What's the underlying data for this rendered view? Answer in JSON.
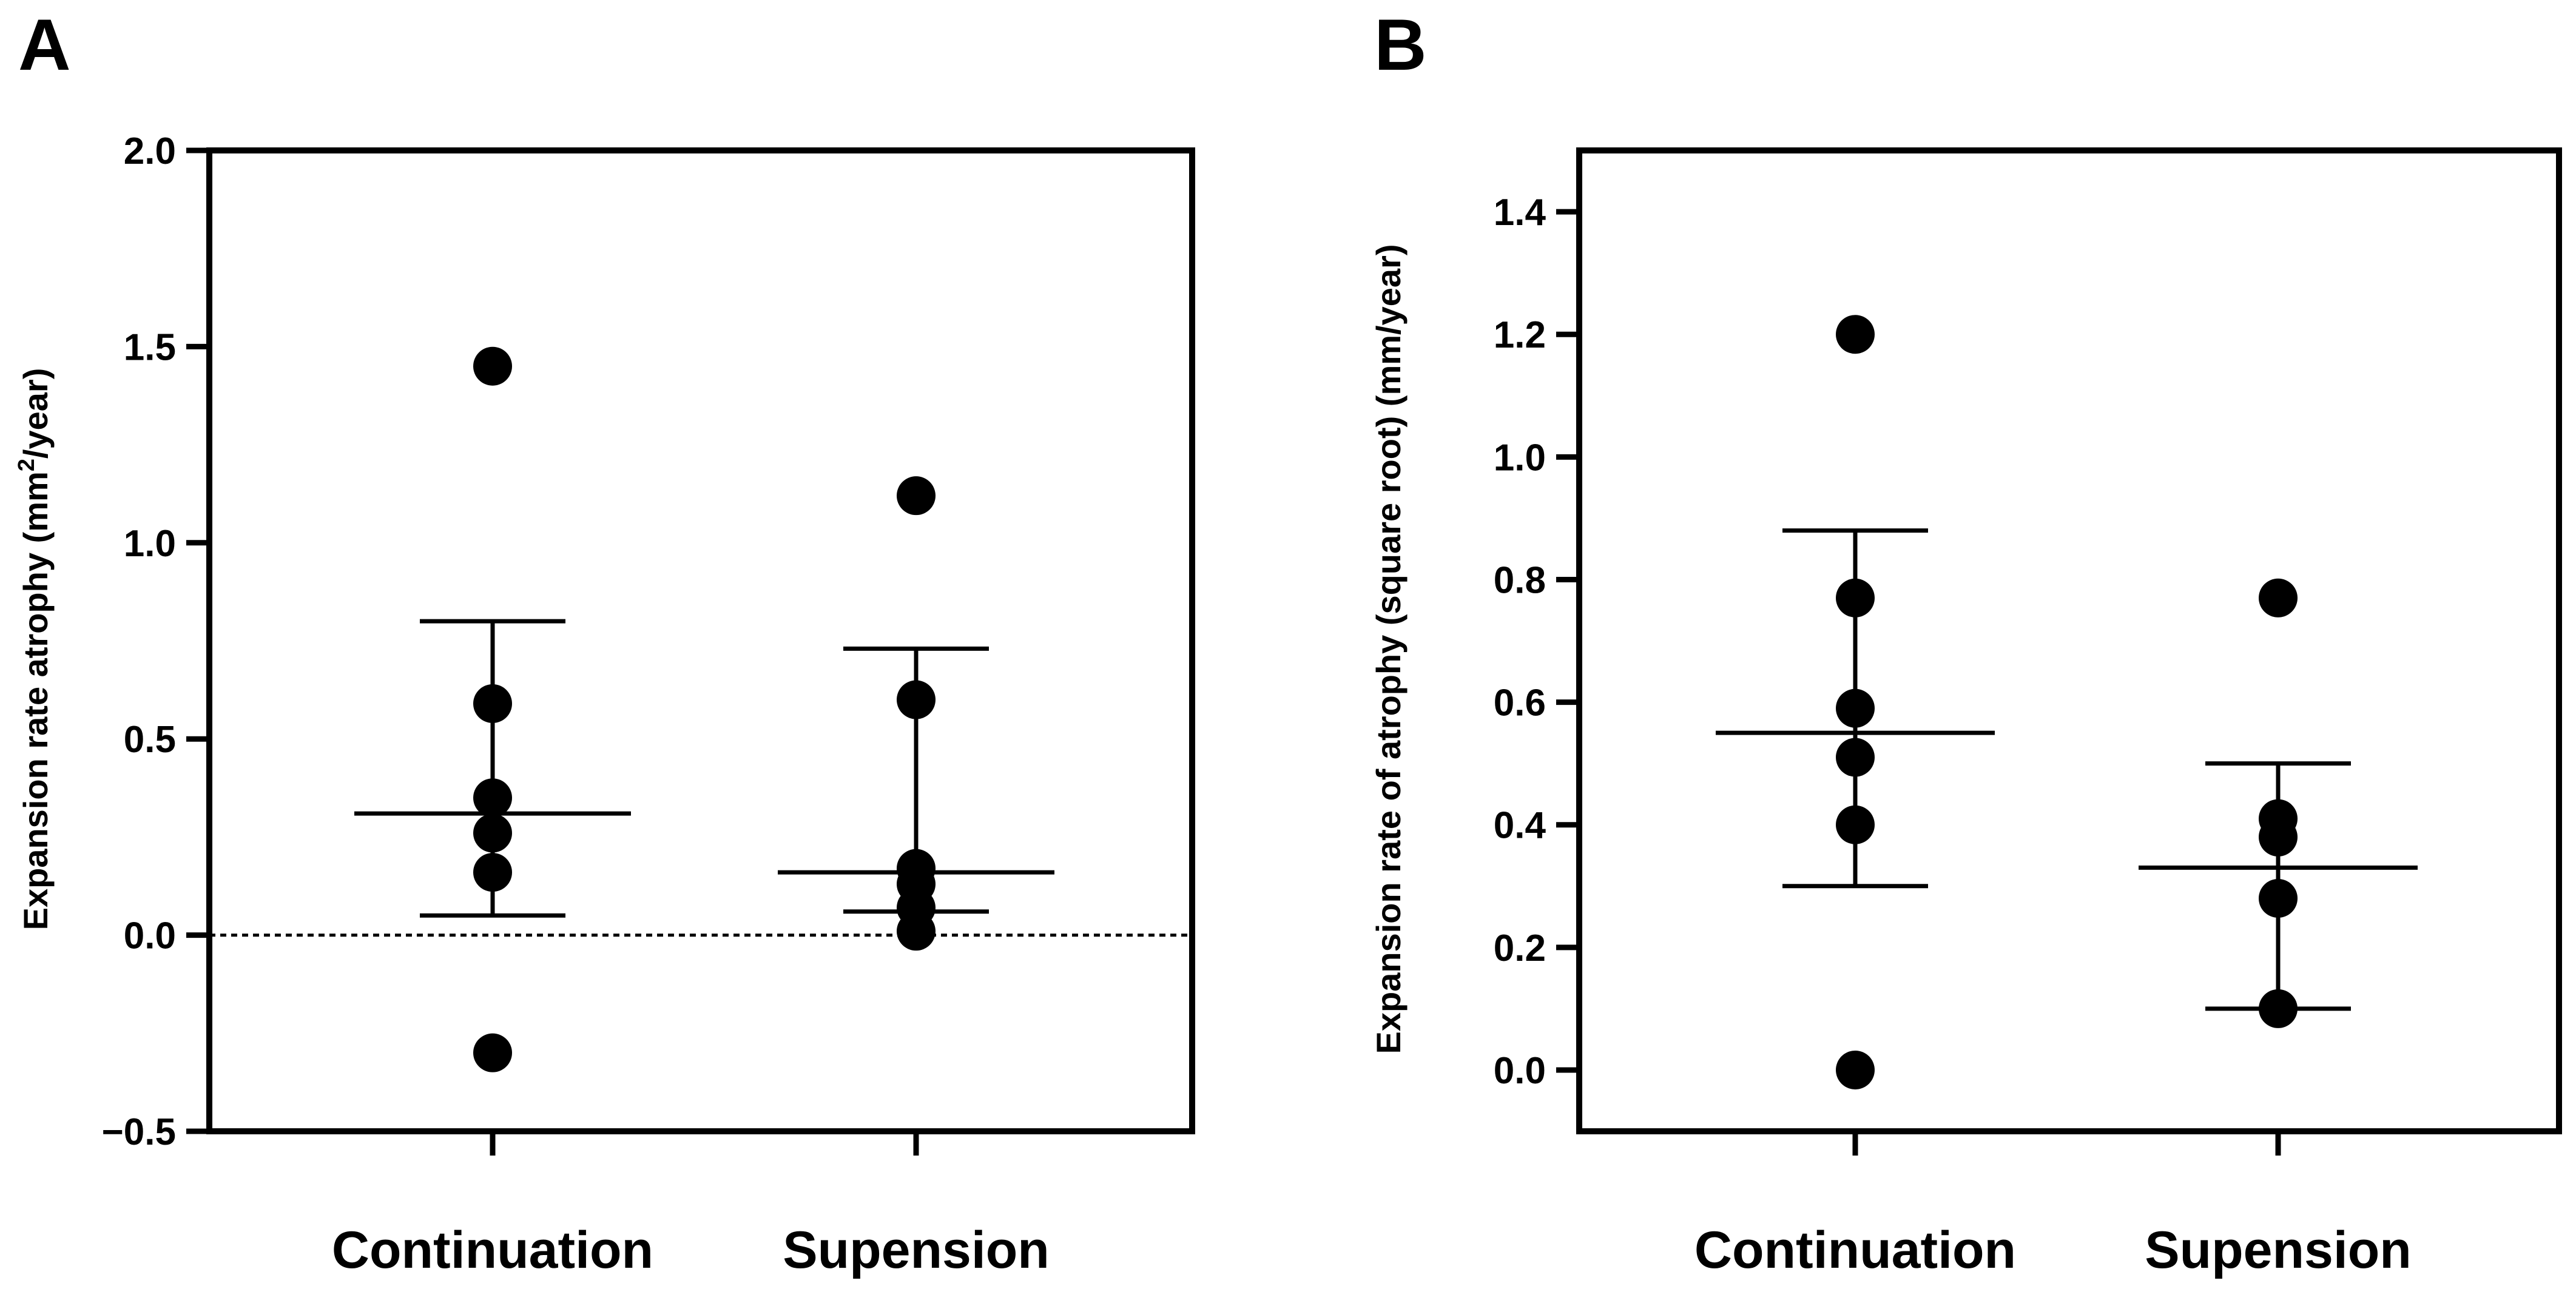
{
  "chart_data": [
    {
      "type": "scatter",
      "panel_label": "A",
      "title": "",
      "xlabel": "",
      "ylabel_parts": [
        "Expansion rate atrophy (mm",
        "2",
        "/year)"
      ],
      "categories": [
        "Continuation",
        "Supension"
      ],
      "ylim": [
        -0.5,
        2.0
      ],
      "yticks": [
        -0.5,
        0.0,
        0.5,
        1.0,
        1.5,
        2.0
      ],
      "ytick_labels": [
        "−0.5",
        "0.0",
        "0.5",
        "1.0",
        "1.5",
        "2.0"
      ],
      "reference_line": {
        "y": 0.0,
        "style": "dotted"
      },
      "series": [
        {
          "name": "Continuation",
          "points": [
            1.45,
            0.59,
            0.35,
            0.26,
            0.16,
            -0.3
          ],
          "mean": 0.31,
          "error_low": 0.05,
          "error_high": 0.8
        },
        {
          "name": "Supension",
          "points": [
            1.12,
            0.6,
            0.17,
            0.13,
            0.07,
            0.01
          ],
          "mean": 0.16,
          "error_low": 0.06,
          "error_high": 0.73
        }
      ]
    },
    {
      "type": "scatter",
      "panel_label": "B",
      "title": "",
      "xlabel": "",
      "ylabel_parts": [
        "Expansion  rate of atrophy (square root) (mm/year)"
      ],
      "categories": [
        "Continuation",
        "Supension"
      ],
      "ylim": [
        -0.1,
        1.5
      ],
      "yticks": [
        0.0,
        0.2,
        0.4,
        0.6,
        0.8,
        1.0,
        1.2,
        1.4
      ],
      "ytick_labels": [
        "0.0",
        "0.2",
        "0.4",
        "0.6",
        "0.8",
        "1.0",
        "1.2",
        "1.4"
      ],
      "series": [
        {
          "name": "Continuation",
          "points": [
            1.2,
            0.77,
            0.59,
            0.51,
            0.4,
            0.0
          ],
          "mean": 0.55,
          "error_low": 0.3,
          "error_high": 0.88
        },
        {
          "name": "Supension",
          "points": [
            0.77,
            0.41,
            0.38,
            0.28,
            0.1
          ],
          "mean": 0.33,
          "error_low": 0.1,
          "error_high": 0.5
        }
      ]
    }
  ]
}
